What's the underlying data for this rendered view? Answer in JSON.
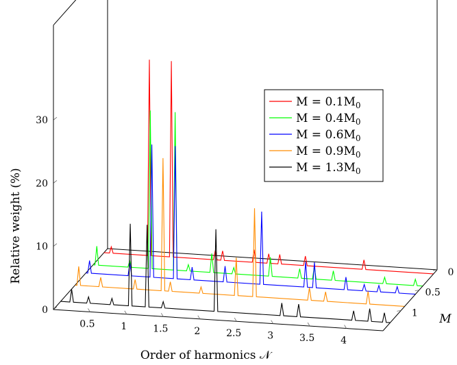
{
  "chart_data": {
    "type": "line",
    "title": "",
    "xlabel": "Order of harmonics 𝒩",
    "ylabel": "Relative weight  (%)",
    "zlabel": "M",
    "x_ticks": [
      "0.5",
      "1",
      "1.5",
      "2",
      "2.5",
      "3",
      "3.5",
      "4"
    ],
    "y_ticks": [
      "0",
      "10",
      "20",
      "30"
    ],
    "z_ticks": [
      "0",
      "0.5",
      "1"
    ],
    "xlim": [
      0,
      4.5
    ],
    "ylim": [
      0,
      35
    ],
    "legend_position": "top-right",
    "legend": [
      "M = 0.1M",
      "M = 0.4M",
      "M = 0.6M",
      "M = 0.9M",
      "M = 1.3M"
    ],
    "legend_subscript": "0",
    "series": [
      {
        "name": "M = 0.1M0",
        "m": 0.1,
        "color": "#ff0000",
        "x": [
          0.1,
          0.62,
          0.92,
          1.52,
          1.62,
          2.05,
          2.25,
          2.4,
          2.75,
          3.55
        ],
        "y": [
          1,
          31,
          31,
          1.5,
          1.5,
          2,
          1.5,
          1.5,
          1.5,
          1.5
        ]
      },
      {
        "name": "M = 0.4M0",
        "m": 0.4,
        "color": "#00ff00",
        "x": [
          0.05,
          0.5,
          0.78,
          1.12,
          1.3,
          1.62,
          1.92,
          2.42,
          2.82,
          3.02,
          3.28,
          3.98,
          4.4
        ],
        "y": [
          3,
          1,
          25,
          25,
          1,
          3,
          1,
          3,
          1.5,
          2,
          1.5,
          1,
          1
        ]
      },
      {
        "name": "M = 0.6M0",
        "m": 0.6,
        "color": "#0000ff",
        "x": [
          0.05,
          0.6,
          0.9,
          1.22,
          1.45,
          1.9,
          2.4,
          3.0,
          3.12,
          3.55,
          3.8,
          4.0,
          4.25
        ],
        "y": [
          2,
          2,
          21,
          21,
          2,
          2.5,
          11.5,
          4,
          4,
          2,
          1,
          1,
          1
        ]
      },
      {
        "name": "M = 0.9M0",
        "m": 0.9,
        "color": "#ff8c00",
        "x": [
          0.05,
          0.35,
          0.82,
          1.2,
          1.3,
          1.72,
          2.2,
          2.45,
          3.2,
          3.42,
          4.0
        ],
        "y": [
          3,
          1.5,
          1.5,
          21,
          1.5,
          1,
          6,
          14,
          2,
          1.5,
          2
        ]
      },
      {
        "name": "M = 1.3M0",
        "m": 1.3,
        "color": "#000000",
        "x": [
          0.15,
          0.38,
          0.7,
          0.95,
          1.18,
          1.4,
          2.12,
          3.02,
          3.25,
          4.0,
          4.22,
          4.42
        ],
        "y": [
          2,
          1,
          1,
          13,
          13,
          1,
          13,
          2,
          2,
          1.5,
          2,
          1.5
        ]
      }
    ]
  }
}
